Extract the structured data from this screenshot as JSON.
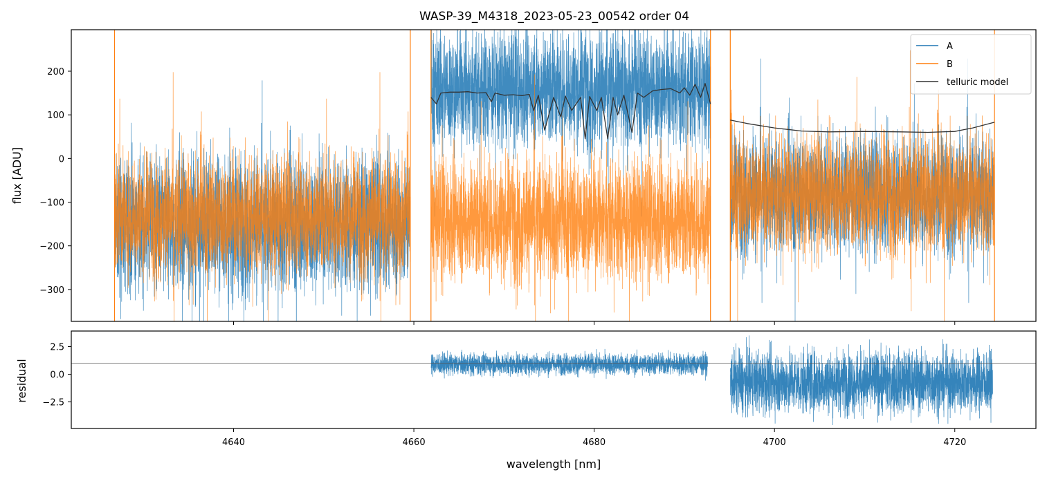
{
  "chart_data": [
    {
      "type": "line",
      "panel": "main",
      "title": "WASP-39_M4318_2023-05-23_00542  order 04",
      "xlabel": "",
      "ylabel": "flux [ADU]",
      "xlim": [
        4622,
        4729
      ],
      "ylim": [
        -373,
        295
      ],
      "xticks": [
        4640,
        4660,
        4680,
        4700,
        4720
      ],
      "xtick_labels": [
        "",
        "",
        "",
        "",
        ""
      ],
      "yticks": [
        200,
        100,
        0,
        -100,
        -200,
        -300
      ],
      "ytick_labels": [
        "200",
        "100",
        "0",
        "−100",
        "−200",
        "−300"
      ],
      "legend": {
        "location": "top-right",
        "entries": [
          {
            "label": "A",
            "color": "#1f77b4"
          },
          {
            "label": "B",
            "color": "#ff7f0e"
          },
          {
            "label": "telluric model",
            "color": "#333333"
          }
        ]
      },
      "segments": [
        {
          "x_range": [
            4626.8,
            4659.6
          ],
          "A_mean": -150,
          "A_noise": 140,
          "B_mean": -130,
          "B_noise": 120
        },
        {
          "x_range": [
            4661.9,
            4692.9
          ],
          "A_mean": 160,
          "A_noise": 120,
          "B_mean": -140,
          "B_noise": 125
        },
        {
          "x_range": [
            4695.1,
            4724.4
          ],
          "A_mean": -80,
          "A_noise": 120,
          "B_mean": -80,
          "B_noise": 120
        }
      ],
      "telluric_model": [
        {
          "x": [
            4661.9,
            4662.5,
            4663,
            4664,
            4665,
            4666,
            4667,
            4668,
            4668.6,
            4669,
            4670,
            4671,
            4672,
            4672.8,
            4673.3,
            4673.8,
            4674.5,
            4675.5,
            4676.3,
            4676.8,
            4677.5,
            4678.5,
            4679,
            4679.5,
            4680.3,
            4680.8,
            4681.5,
            4682.1,
            4682.6,
            4683.3,
            4684.2,
            4684.8,
            4685.5,
            4686.5,
            4687.5,
            4688.5,
            4689.5,
            4690,
            4690.6,
            4691.2,
            4691.8,
            4692.3,
            4692.9
          ],
          "y": [
            140,
            125,
            150,
            152,
            152,
            153,
            150,
            151,
            130,
            150,
            145,
            146,
            144,
            147,
            110,
            145,
            65,
            140,
            95,
            143,
            110,
            140,
            45,
            142,
            110,
            140,
            45,
            140,
            100,
            145,
            60,
            150,
            140,
            155,
            158,
            160,
            150,
            162,
            145,
            170,
            140,
            172,
            125
          ]
        },
        {
          "x": [
            4695.1,
            4697,
            4700,
            4703,
            4706,
            4710,
            4714,
            4717,
            4720,
            4722,
            4724.4
          ],
          "y": [
            88,
            80,
            70,
            63,
            61,
            62,
            61,
            60,
            62,
            70,
            83
          ]
        }
      ]
    },
    {
      "type": "line",
      "panel": "residual",
      "xlabel": "wavelength [nm]",
      "ylabel": "residual",
      "xlim": [
        4622,
        4729
      ],
      "ylim": [
        -4.9,
        3.9
      ],
      "xticks": [
        4640,
        4660,
        4680,
        4700,
        4720
      ],
      "xtick_labels": [
        "4640",
        "4660",
        "4680",
        "4700",
        "4720"
      ],
      "yticks": [
        2.5,
        0.0,
        -2.5
      ],
      "ytick_labels": [
        "2.5",
        "0.0",
        "−2.5"
      ],
      "reference_line": 1.0,
      "series": [
        {
          "name": "A",
          "color": "#1f77b4",
          "segments": [
            {
              "x_range": [
                4661.9,
                4692.6
              ],
              "mean": 0.9,
              "noise": 0.9
            },
            {
              "x_range": [
                4695.1,
                4724.2
              ],
              "mean": -0.7,
              "noise": 2.6
            }
          ]
        }
      ]
    }
  ]
}
